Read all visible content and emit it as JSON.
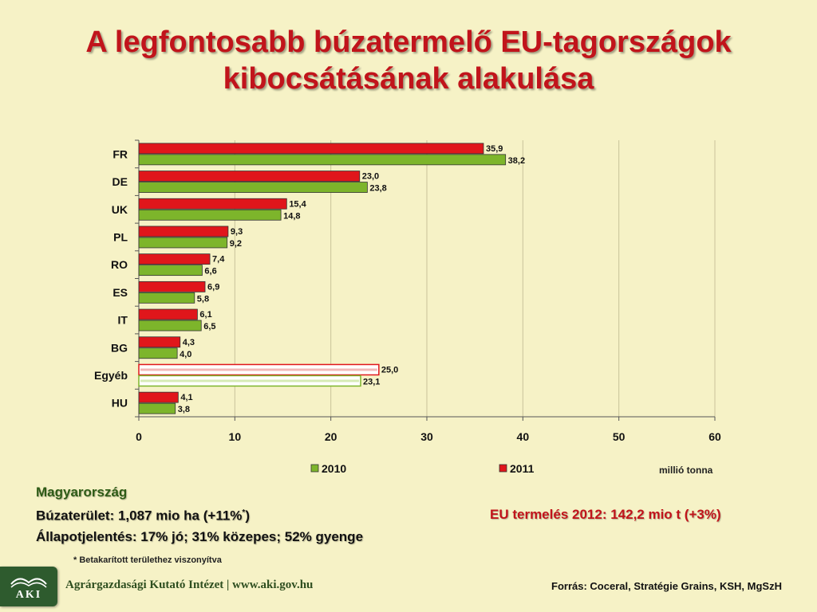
{
  "title": "A legfontosabb búzatermelő EU-tagországok kibocsátásának alakulása",
  "chart_data": {
    "type": "bar",
    "orientation": "horizontal",
    "categories": [
      "FR",
      "DE",
      "UK",
      "PL",
      "RO",
      "ES",
      "IT",
      "BG",
      "Egyéb",
      "HU"
    ],
    "series": [
      {
        "name": "2011",
        "values": [
          35.9,
          23.0,
          15.4,
          9.3,
          7.4,
          6.9,
          6.1,
          4.3,
          25.0,
          4.1
        ]
      },
      {
        "name": "2010",
        "values": [
          38.2,
          23.8,
          14.8,
          9.2,
          6.6,
          5.8,
          6.5,
          4.0,
          23.1,
          3.8
        ]
      }
    ],
    "value_labels": {
      "2011": [
        "35,9",
        "23,0",
        "15,4",
        "9,3",
        "7,4",
        "6,9",
        "6,1",
        "4,3",
        "25,0",
        "4,1"
      ],
      "2010": [
        "38,2",
        "23,8",
        "14,8",
        "9,2",
        "6,6",
        "5,8",
        "6,5",
        "4,0",
        "23,1",
        "3,8"
      ]
    },
    "highlighted_category": "Egyéb",
    "xlim": [
      0,
      60
    ],
    "xticks": [
      0,
      10,
      20,
      30,
      40,
      50,
      60
    ],
    "legend": [
      "2010",
      "2011"
    ],
    "legend_position": "bottom",
    "grid": "vertical",
    "colors": {
      "2011": "#e0161b",
      "2010": "#7db52b"
    }
  },
  "unit_label": "millió tonna",
  "hungary": {
    "heading": "Magyarország",
    "area_prefix": "Búzaterület: 1,087 mio ha (+11%",
    "area_mark": "*",
    "area_suffix": ")",
    "condition": "Állapotjelentés: 17% jó; 31% közepes; 52% gyenge"
  },
  "footnote": "* Betakarított területhez viszonyítva",
  "eu_production": "EU termelés 2012: 142,2 mio t (+3%)",
  "org_logo_text": "AKI",
  "org_name": "Agrárgazdasági Kutató Intézet | www.aki.gov.hu",
  "source": "Forrás: Coceral, Stratégie Grains, KSH, MgSzH"
}
